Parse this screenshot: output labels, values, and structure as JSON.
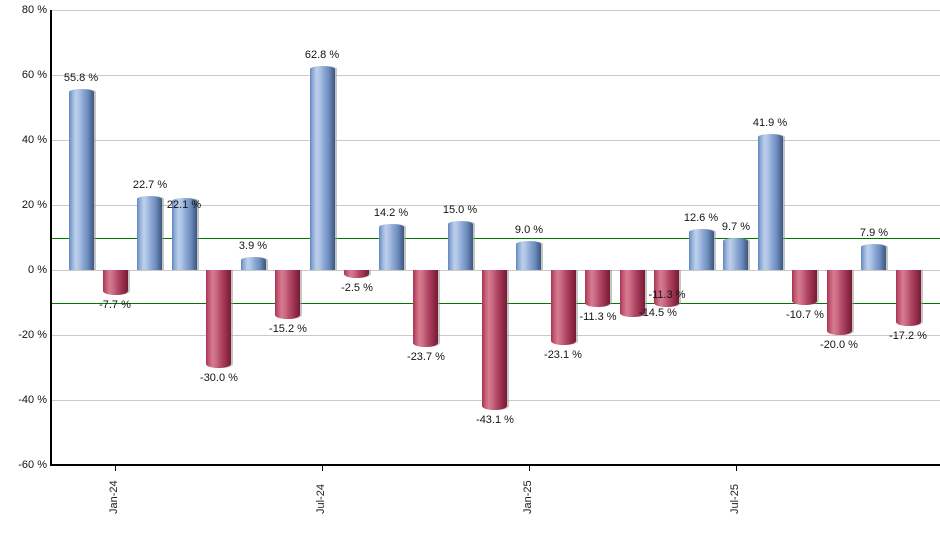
{
  "page": {
    "background": "#ffffff"
  },
  "chart_data": {
    "type": "bar",
    "title": "",
    "xlabel": "",
    "ylabel": "",
    "unit": "%",
    "ylim": [
      -60,
      80
    ],
    "grid": true,
    "legend": "none",
    "yticks": [
      {
        "value": 80,
        "label": "80 %"
      },
      {
        "value": 60,
        "label": "60 %"
      },
      {
        "value": 40,
        "label": "40 %"
      },
      {
        "value": 20,
        "label": "20 %"
      },
      {
        "value": 0,
        "label": "0 %"
      },
      {
        "value": -20,
        "label": "-20 %"
      },
      {
        "value": -40,
        "label": "-40 %"
      },
      {
        "value": -60,
        "label": "-60 %"
      }
    ],
    "reference_lines": [
      {
        "value": 10
      },
      {
        "value": -10
      }
    ],
    "x_axis_ticks": [
      {
        "slot": 1,
        "label": "Jan-24"
      },
      {
        "slot": 7,
        "label": "Jul-24"
      },
      {
        "slot": 13,
        "label": "Jan-25"
      },
      {
        "slot": 19,
        "label": "Jul-25"
      }
    ],
    "bars": [
      {
        "value": 55.8,
        "label": "55.8 %"
      },
      {
        "value": -7.7,
        "label": "-7.7 %"
      },
      {
        "value": 22.7,
        "label": "22.7 %"
      },
      {
        "value": 22.1,
        "label": "22.1 %",
        "label_dy": 18
      },
      {
        "value": -30.0,
        "label": "-30.0 %"
      },
      {
        "value": 3.9,
        "label": "3.9 %"
      },
      {
        "value": -15.2,
        "label": "-15.2 %"
      },
      {
        "value": 62.8,
        "label": "62.8 %"
      },
      {
        "value": -2.5,
        "label": "-2.5 %"
      },
      {
        "value": 14.2,
        "label": "14.2 %"
      },
      {
        "value": -23.7,
        "label": "-23.7 %"
      },
      {
        "value": 15.0,
        "label": "15.0 %"
      },
      {
        "value": -43.1,
        "label": "-43.1 %"
      },
      {
        "value": 9.0,
        "label": "9.0 %"
      },
      {
        "value": -23.1,
        "label": "-23.1 %"
      },
      {
        "value": -11.3,
        "label": "-11.3 %"
      },
      {
        "value": -14.5,
        "label": "-14.5 %",
        "label_dx": 26,
        "label_dy": -14
      },
      {
        "value": -11.3,
        "label": "-11.3 %",
        "label_dy": -22
      },
      {
        "value": 12.6,
        "label": "12.6 %"
      },
      {
        "value": 9.7,
        "label": "9.7 %"
      },
      {
        "value": 41.9,
        "label": "41.9 %"
      },
      {
        "value": -10.7,
        "label": "-10.7 %"
      },
      {
        "value": -20.0,
        "label": "-20.0 %"
      },
      {
        "value": 7.9,
        "label": "7.9 %"
      },
      {
        "value": -17.2,
        "label": "-17.2 %"
      }
    ],
    "colors": {
      "positive_light": "#bdd0ec",
      "positive_dark": "#3b557e",
      "positive_edge": "#6484bc",
      "negative_light": "#d67c91",
      "negative_dark": "#771c33",
      "negative_edge": "#a83352",
      "reference_line": "#007800",
      "gridline": "#c9c9c9",
      "axis": "#000000",
      "label_text": "#141414"
    }
  }
}
